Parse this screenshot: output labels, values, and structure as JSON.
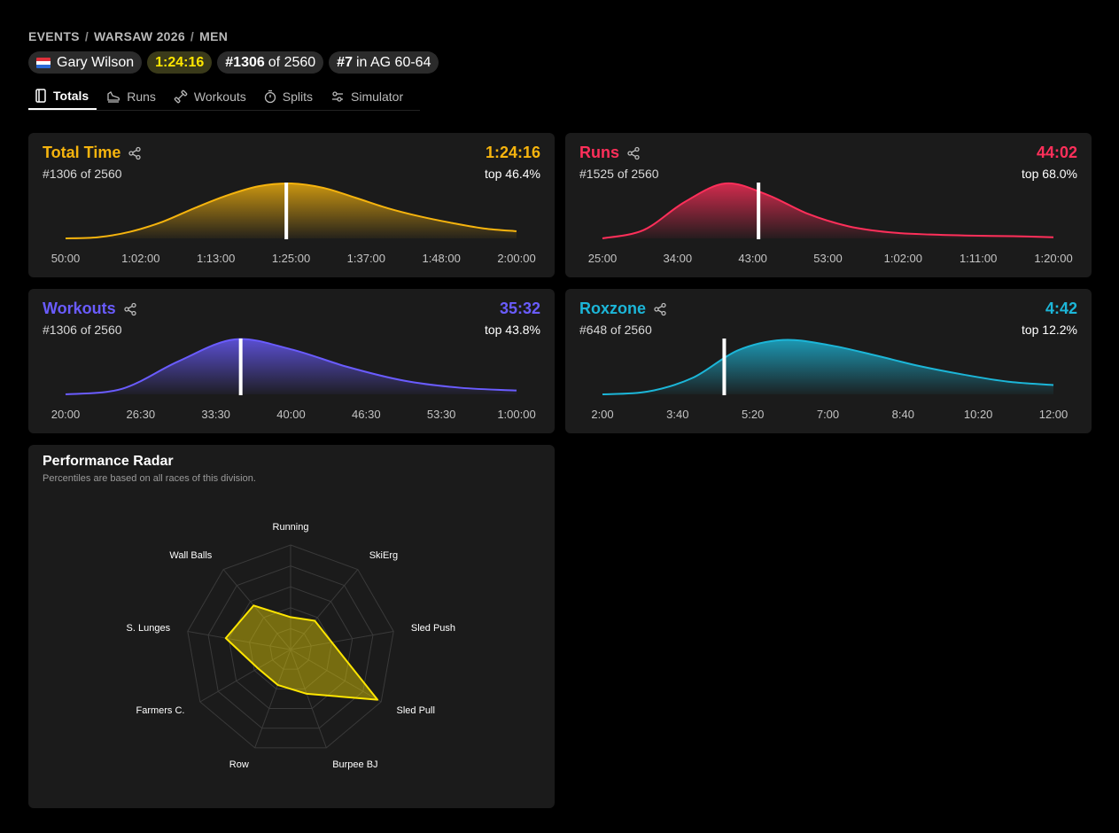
{
  "breadcrumb": {
    "events": "EVENTS",
    "event": "WARSAW 2026",
    "division": "MEN",
    "sep": "/"
  },
  "athlete": {
    "name": "Gary Wilson",
    "total_time": "1:24:16",
    "overall_rank": "#1306",
    "overall_of": "of 2560",
    "ag_rank": "#7",
    "ag_label": "in AG 60-64"
  },
  "tabs": [
    {
      "label": "Totals",
      "icon": "notebook-icon",
      "active": true
    },
    {
      "label": "Runs",
      "icon": "shoe-icon"
    },
    {
      "label": "Workouts",
      "icon": "dumbbell-icon"
    },
    {
      "label": "Splits",
      "icon": "stopwatch-icon"
    },
    {
      "label": "Simulator",
      "icon": "sliders-icon"
    }
  ],
  "cards": {
    "total": {
      "title": "Total Time",
      "value": "1:24:16",
      "rank": "#1306 of 2560",
      "top": "top 46.4%",
      "color": "#f6b40e",
      "ticks": [
        "50:00",
        "1:02:00",
        "1:13:00",
        "1:25:00",
        "1:37:00",
        "1:48:00",
        "2:00:00"
      ]
    },
    "runs": {
      "title": "Runs",
      "value": "44:02",
      "rank": "#1525 of 2560",
      "top": "top 68.0%",
      "color": "#ff2f5a",
      "ticks": [
        "25:00",
        "34:00",
        "43:00",
        "53:00",
        "1:02:00",
        "1:11:00",
        "1:20:00"
      ]
    },
    "workouts": {
      "title": "Workouts",
      "value": "35:32",
      "rank": "#1306 of 2560",
      "top": "top 43.8%",
      "color": "#6a5cff",
      "ticks": [
        "20:00",
        "26:30",
        "33:30",
        "40:00",
        "46:30",
        "53:30",
        "1:00:00"
      ]
    },
    "roxzone": {
      "title": "Roxzone",
      "value": "4:42",
      "rank": "#648 of 2560",
      "top": "top 12.2%",
      "color": "#1cb6d8",
      "ticks": [
        "2:00",
        "3:40",
        "5:20",
        "7:00",
        "8:40",
        "10:20",
        "12:00"
      ]
    }
  },
  "radar": {
    "title": "Performance Radar",
    "subtitle": "Percentiles are based on all races of this division.",
    "color": "#ffe600",
    "axes": [
      "Running",
      "SkiErg",
      "Sled Push",
      "Sled Pull",
      "Burpee BJ",
      "Row",
      "Farmers C.",
      "S. Lunges",
      "Wall Balls"
    ],
    "values": [
      0.31,
      0.36,
      0.4,
      0.96,
      0.45,
      0.36,
      0.36,
      0.63,
      0.55
    ]
  },
  "chart_data": [
    {
      "type": "area",
      "title": "Total Time",
      "xlabel": "",
      "ylabel": "",
      "x": [
        "50:00",
        "55:00",
        "1:00:00",
        "1:05:00",
        "1:10:00",
        "1:15:00",
        "1:20:00",
        "1:25:00",
        "1:30:00",
        "1:35:00",
        "1:40:00",
        "1:45:00",
        "1:50:00",
        "1:55:00",
        "2:00:00"
      ],
      "values": [
        0.0,
        0.02,
        0.12,
        0.3,
        0.55,
        0.78,
        0.95,
        1.0,
        0.92,
        0.74,
        0.55,
        0.4,
        0.28,
        0.18,
        0.13
      ],
      "marker": "1:24:16"
    },
    {
      "type": "area",
      "title": "Runs",
      "xlabel": "",
      "ylabel": "",
      "x": [
        "25:00",
        "30:00",
        "35:00",
        "40:00",
        "45:00",
        "50:00",
        "55:00",
        "1:00:00",
        "1:05:00",
        "1:10:00",
        "1:15:00",
        "1:20:00"
      ],
      "values": [
        0.0,
        0.15,
        0.66,
        1.0,
        0.8,
        0.45,
        0.22,
        0.11,
        0.07,
        0.05,
        0.04,
        0.02
      ],
      "marker": "44:02"
    },
    {
      "type": "area",
      "title": "Workouts",
      "xlabel": "",
      "ylabel": "",
      "x": [
        "20:00",
        "25:00",
        "30:00",
        "35:00",
        "40:00",
        "45:00",
        "50:00",
        "55:00",
        "1:00:00"
      ],
      "values": [
        0.0,
        0.1,
        0.6,
        1.0,
        0.82,
        0.5,
        0.25,
        0.12,
        0.07
      ],
      "marker": "35:32"
    },
    {
      "type": "area",
      "title": "Roxzone",
      "xlabel": "",
      "ylabel": "",
      "x": [
        "2:00",
        "3:00",
        "4:00",
        "5:00",
        "6:00",
        "7:00",
        "8:00",
        "9:00",
        "10:00",
        "11:00",
        "12:00"
      ],
      "values": [
        0.0,
        0.05,
        0.3,
        0.8,
        0.99,
        0.9,
        0.72,
        0.52,
        0.36,
        0.23,
        0.17
      ],
      "marker": "4:42"
    },
    {
      "type": "radar",
      "title": "Performance Radar",
      "axes": [
        "Running",
        "SkiErg",
        "Sled Push",
        "Sled Pull",
        "Burpee BJ",
        "Row",
        "Farmers C.",
        "S. Lunges",
        "Wall Balls"
      ],
      "values": [
        0.31,
        0.36,
        0.4,
        0.96,
        0.45,
        0.36,
        0.36,
        0.63,
        0.55
      ]
    }
  ]
}
